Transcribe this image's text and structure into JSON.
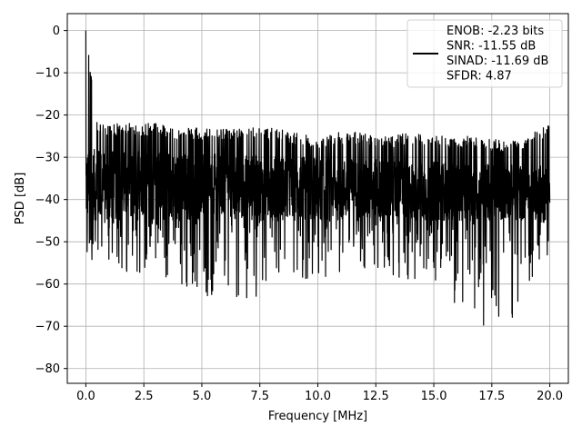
{
  "chart_data": {
    "type": "line",
    "xlabel": "Frequency [MHz]",
    "ylabel": "PSD [dB]",
    "xlim": [
      -0.8,
      20.8
    ],
    "ylim": [
      -83.5,
      4
    ],
    "xticks": [
      0.0,
      2.5,
      5.0,
      7.5,
      10.0,
      12.5,
      15.0,
      17.5,
      20.0
    ],
    "xtick_labels": [
      "0.0",
      "2.5",
      "5.0",
      "7.5",
      "10.0",
      "12.5",
      "15.0",
      "17.5",
      "20.0"
    ],
    "yticks": [
      0,
      -10,
      -20,
      -30,
      -40,
      -50,
      -60,
      -70,
      -80
    ],
    "ytick_labels": [
      "0",
      "−10",
      "−20",
      "−30",
      "−40",
      "−50",
      "−60",
      "−70",
      "−80"
    ],
    "grid": true,
    "legend_position": "top-right",
    "series": [
      {
        "name": "ENOB: -2.23 bits",
        "color": "#000000",
        "envelope": {
          "x": [
            0.0,
            0.5,
            1.0,
            2.0,
            3.0,
            4.0,
            5.0,
            6.0,
            7.0,
            8.0,
            9.0,
            10.0,
            11.0,
            12.0,
            13.0,
            14.0,
            15.0,
            16.0,
            17.0,
            18.0,
            19.0,
            20.0
          ],
          "upper": [
            0,
            -22,
            -22,
            -22,
            -22,
            -23,
            -23,
            -23,
            -23,
            -23,
            -24,
            -25,
            -24,
            -24,
            -25,
            -24,
            -25,
            -25,
            -25,
            -26,
            -25,
            -22
          ],
          "lower": [
            -58,
            -55,
            -56,
            -58,
            -57,
            -60,
            -63,
            -62,
            -65,
            -60,
            -59,
            -59,
            -58,
            -58,
            -60,
            -59,
            -61,
            -66,
            -70,
            -79,
            -60,
            -55
          ]
        },
        "noise_band": {
          "x": [
            0.0,
            20.0
          ],
          "upper": [
            -28,
            -32
          ],
          "lower": [
            -45,
            -45
          ]
        }
      }
    ],
    "legend_lines": [
      "ENOB: -2.23 bits",
      "SNR: -11.55 dB",
      "SINAD: -11.69 dB",
      "SFDR: 4.87"
    ]
  }
}
